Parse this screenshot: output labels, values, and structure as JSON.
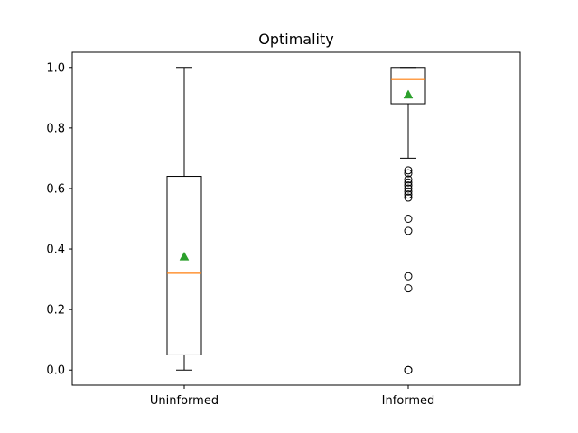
{
  "chart_data": {
    "type": "box",
    "title": "Optimality",
    "xlabel": "",
    "ylabel": "",
    "ylim": [
      -0.05,
      1.05
    ],
    "yticks": [
      0.0,
      0.2,
      0.4,
      0.6,
      0.8,
      1.0
    ],
    "ytick_labels": [
      "0.0",
      "0.2",
      "0.4",
      "0.6",
      "0.8",
      "1.0"
    ],
    "grid": false,
    "categories": [
      "Uninformed",
      "Informed"
    ],
    "boxes": [
      {
        "category": "Uninformed",
        "whisker_low": 0.0,
        "q1": 0.05,
        "median": 0.32,
        "q3": 0.64,
        "whisker_high": 1.0,
        "mean": 0.375,
        "outliers": []
      },
      {
        "category": "Informed",
        "whisker_low": 0.7,
        "q1": 0.88,
        "median": 0.96,
        "q3": 1.0,
        "whisker_high": 1.0,
        "mean": 0.91,
        "outliers": [
          0.66,
          0.65,
          0.63,
          0.62,
          0.61,
          0.6,
          0.59,
          0.58,
          0.57,
          0.5,
          0.46,
          0.31,
          0.27,
          0.0,
          0.0
        ]
      }
    ],
    "colors": {
      "box": "#000000",
      "median": "#ff7f0e",
      "mean": "#2ca02c",
      "outlier": "#000000"
    }
  }
}
